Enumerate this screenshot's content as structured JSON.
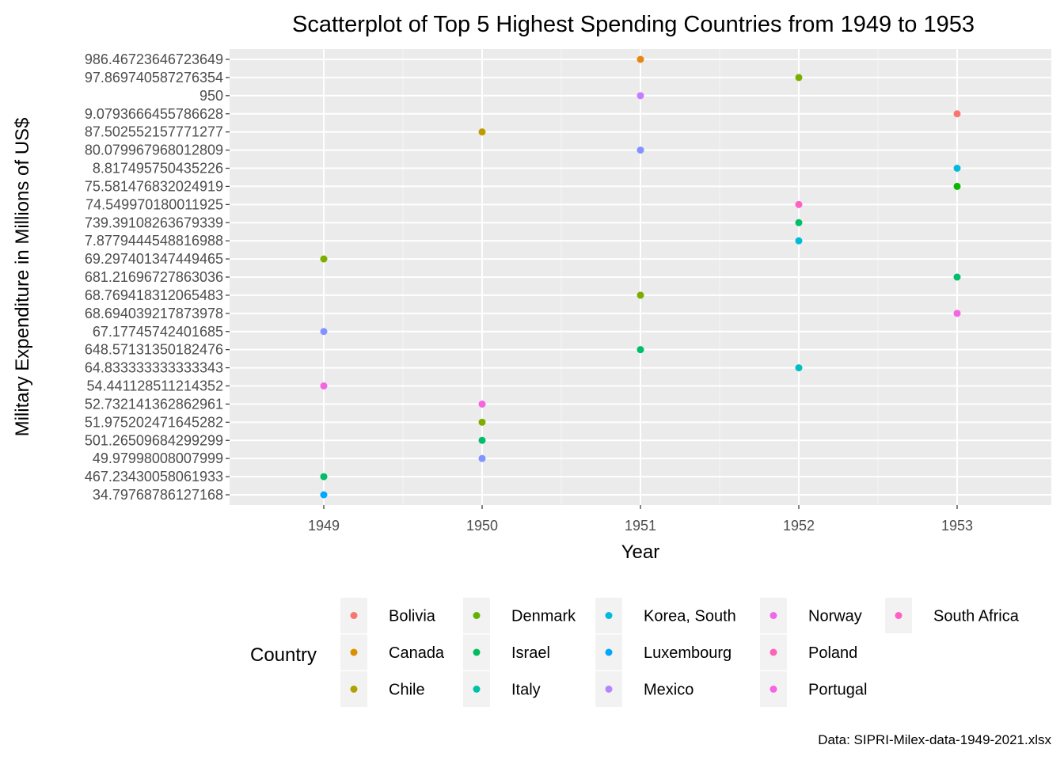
{
  "chart_data": {
    "type": "scatter",
    "title": "Scatterplot of Top 5 Highest Spending Countries from 1949 to 1953",
    "xlabel": "Year",
    "ylabel": "Military Expenditure in Millions of US$",
    "caption": "Data: SIPRI-Milex-data-1949-2021.xlsx",
    "x_ticks": [
      "1949",
      "1950",
      "1951",
      "1952",
      "1953"
    ],
    "y_axis_scale": "categorical (values treated as text labels, sorted alphabetically)",
    "y_categories": [
      "34.79768786127168",
      "467.23430058061933",
      "49.97998008007999",
      "501.26509684299299",
      "51.975202471645282",
      "52.732141362862961",
      "54.441128511214352",
      "64.833333333333343",
      "648.57131350182476",
      "67.17745742401685",
      "68.694039217873978",
      "68.769418312065483",
      "681.21696727863036",
      "69.297401347449465",
      "7.8779444548816988",
      "739.39108263679339",
      "74.549970180011925",
      "75.581476832024919",
      "8.817495750435226",
      "80.079967968012809",
      "87.502552157771277",
      "9.0793666455786628",
      "950",
      "97.869740587276354",
      "986.46723646723649"
    ],
    "grid": true,
    "legend": {
      "title": "Country",
      "position": "bottom",
      "entries": [
        {
          "name": "Bolivia",
          "color": "#F8766D"
        },
        {
          "name": "Canada",
          "color": "#DB8E00"
        },
        {
          "name": "Chile",
          "color": "#AEA200"
        },
        {
          "name": "Denmark",
          "color": "#64B200"
        },
        {
          "name": "Israel",
          "color": "#00BD5C"
        },
        {
          "name": "Italy",
          "color": "#00C1A7"
        },
        {
          "name": "Korea, South",
          "color": "#00BADE"
        },
        {
          "name": "Luxembourg",
          "color": "#00A6FF"
        },
        {
          "name": "Mexico",
          "color": "#B385FF"
        },
        {
          "name": "Norway",
          "color": "#EF67EB"
        },
        {
          "name": "Poland",
          "color": "#FF63B6"
        },
        {
          "name": "Portugal",
          "color": "#F564E3"
        },
        {
          "name": "South Africa",
          "color": "#FF61C3"
        }
      ]
    },
    "points": [
      {
        "x": "1949",
        "y": "34.79768786127168",
        "country": "Mexico",
        "color": "#00A9FF"
      },
      {
        "x": "1949",
        "y": "467.23430058061933",
        "country": "Italy",
        "color": "#00BE67"
      },
      {
        "x": "1949",
        "y": "54.441128511214352",
        "country": "Portugal",
        "color": "#F564E3"
      },
      {
        "x": "1949",
        "y": "67.17745742401685",
        "country": "Norway",
        "color": "#8494FF"
      },
      {
        "x": "1949",
        "y": "69.297401347449465",
        "country": "Denmark",
        "color": "#7CAE00"
      },
      {
        "x": "1950",
        "y": "49.97998008007999",
        "country": "Norway",
        "color": "#8494FF"
      },
      {
        "x": "1950",
        "y": "501.26509684299299",
        "country": "Italy",
        "color": "#00BE67"
      },
      {
        "x": "1950",
        "y": "51.975202471645282",
        "country": "Denmark",
        "color": "#7CAE00"
      },
      {
        "x": "1950",
        "y": "52.732141362862961",
        "country": "Portugal",
        "color": "#F564E3"
      },
      {
        "x": "1950",
        "y": "87.502552157771277",
        "country": "Chile",
        "color": "#C09B00"
      },
      {
        "x": "1951",
        "y": "648.57131350182476",
        "country": "Italy",
        "color": "#00BE67"
      },
      {
        "x": "1951",
        "y": "68.769418312065483",
        "country": "Denmark",
        "color": "#7CAE00"
      },
      {
        "x": "1951",
        "y": "80.079967968012809",
        "country": "Norway",
        "color": "#8494FF"
      },
      {
        "x": "1951",
        "y": "950",
        "country": "Poland",
        "color": "#C77CFF"
      },
      {
        "x": "1951",
        "y": "986.46723646723649",
        "country": "Canada",
        "color": "#E68613"
      },
      {
        "x": "1952",
        "y": "64.833333333333343",
        "country": "Korea, South",
        "color": "#00BFC4"
      },
      {
        "x": "1952",
        "y": "7.8779444548816988",
        "country": "Luxembourg",
        "color": "#00BCD8"
      },
      {
        "x": "1952",
        "y": "739.39108263679339",
        "country": "Italy",
        "color": "#00BE67"
      },
      {
        "x": "1952",
        "y": "74.549970180011925",
        "country": "South Africa",
        "color": "#FF61C3"
      },
      {
        "x": "1952",
        "y": "97.869740587276354",
        "country": "Denmark",
        "color": "#7CAE00"
      },
      {
        "x": "1953",
        "y": "68.694039217873978",
        "country": "Portugal",
        "color": "#F564E3"
      },
      {
        "x": "1953",
        "y": "681.21696727863036",
        "country": "Italy",
        "color": "#00BE67"
      },
      {
        "x": "1953",
        "y": "75.581476832024919",
        "country": "Israel",
        "color": "#0CB702"
      },
      {
        "x": "1953",
        "y": "8.817495750435226",
        "country": "Luxembourg",
        "color": "#00BCD8"
      },
      {
        "x": "1953",
        "y": "9.0793666455786628",
        "country": "Bolivia",
        "color": "#F8766D"
      }
    ]
  }
}
